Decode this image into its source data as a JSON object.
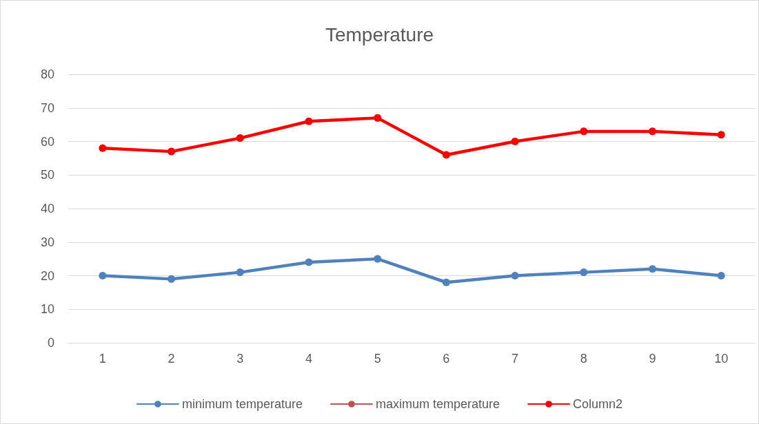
{
  "chart_data": {
    "type": "line",
    "title": "Temperature",
    "categories": [
      "1",
      "2",
      "3",
      "4",
      "5",
      "6",
      "7",
      "8",
      "9",
      "10"
    ],
    "series": [
      {
        "name": "minimum temperature",
        "color": "#4f81bd",
        "values": [
          20,
          19,
          21,
          24,
          25,
          18,
          20,
          21,
          22,
          20
        ]
      },
      {
        "name": "maximum temperature",
        "color": "#c0504d",
        "values": [
          null,
          null,
          null,
          null,
          null,
          null,
          null,
          null,
          null,
          null
        ]
      },
      {
        "name": "Column2",
        "color": "#ff0000",
        "values": [
          58,
          57,
          61,
          66,
          67,
          56,
          60,
          63,
          63,
          62
        ]
      }
    ],
    "ylim": [
      0,
      80
    ],
    "yticks": [
      0,
      10,
      20,
      30,
      40,
      50,
      60,
      70,
      80
    ],
    "grid": "y",
    "legend": "bottom",
    "marker": "circle",
    "line_style": "solid"
  }
}
